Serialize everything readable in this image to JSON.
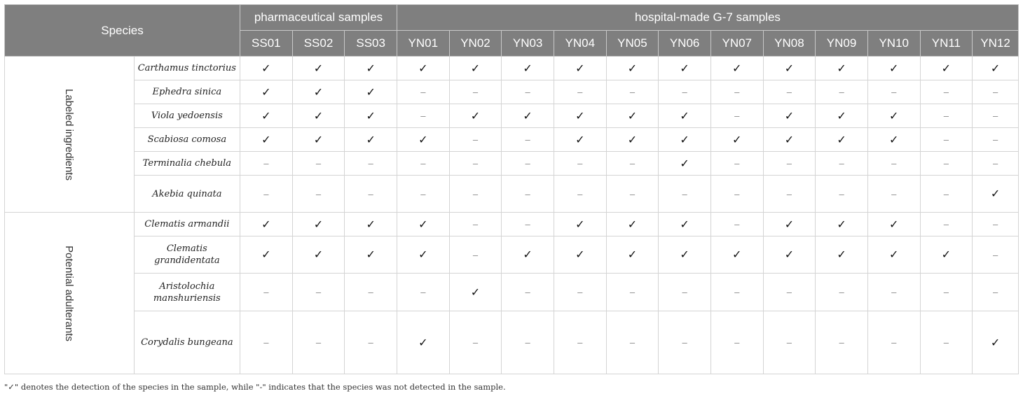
{
  "header": {
    "species_label": "Species",
    "pharma_label": "pharmaceutical samples",
    "hospital_label": "hospital-made G-7 samples",
    "samples": [
      "SS01",
      "SS02",
      "SS03",
      "YN01",
      "YN02",
      "YN03",
      "YN04",
      "YN05",
      "YN06",
      "YN07",
      "YN08",
      "YN09",
      "YN10",
      "YN11",
      "YN12"
    ]
  },
  "symbols": {
    "detected": "✓",
    "not_detected": "–"
  },
  "groups": [
    {
      "label": "Labeled ingredients",
      "rows": [
        {
          "species": "Carthamus tinctorius",
          "detected": [
            1,
            1,
            1,
            1,
            1,
            1,
            1,
            1,
            1,
            1,
            1,
            1,
            1,
            1,
            1
          ]
        },
        {
          "species": "Ephedra sinica",
          "detected": [
            1,
            1,
            1,
            0,
            0,
            0,
            0,
            0,
            0,
            0,
            0,
            0,
            0,
            0,
            0
          ]
        },
        {
          "species": "Viola yedoensis",
          "detected": [
            1,
            1,
            1,
            0,
            1,
            1,
            1,
            1,
            1,
            0,
            1,
            1,
            1,
            0,
            0
          ]
        },
        {
          "species": "Scabiosa comosa",
          "detected": [
            1,
            1,
            1,
            1,
            0,
            0,
            1,
            1,
            1,
            1,
            1,
            1,
            1,
            0,
            0
          ]
        },
        {
          "species": "Terminalia chebula",
          "detected": [
            0,
            0,
            0,
            0,
            0,
            0,
            0,
            0,
            1,
            0,
            0,
            0,
            0,
            0,
            0
          ]
        },
        {
          "species": "Akebia quinata",
          "detected": [
            0,
            0,
            0,
            0,
            0,
            0,
            0,
            0,
            0,
            0,
            0,
            0,
            0,
            0,
            1
          ]
        }
      ]
    },
    {
      "label": "Potential adulterants",
      "rows": [
        {
          "species": "Clematis armandii",
          "detected": [
            1,
            1,
            1,
            1,
            0,
            0,
            1,
            1,
            1,
            0,
            1,
            1,
            1,
            0,
            0
          ]
        },
        {
          "species": "Clematis grandidentata",
          "detected": [
            1,
            1,
            1,
            1,
            0,
            1,
            1,
            1,
            1,
            1,
            1,
            1,
            1,
            1,
            0
          ]
        },
        {
          "species": "Aristolochia manshuriensis",
          "detected": [
            0,
            0,
            0,
            0,
            1,
            0,
            0,
            0,
            0,
            0,
            0,
            0,
            0,
            0,
            0
          ]
        },
        {
          "species": "Corydalis bungeana",
          "detected": [
            0,
            0,
            0,
            1,
            0,
            0,
            0,
            0,
            0,
            0,
            0,
            0,
            0,
            0,
            1
          ]
        }
      ]
    }
  ],
  "footnote": "\"✓\" denotes the detection of the species in the sample, while \"-\" indicates that the species was not detected in the sample."
}
